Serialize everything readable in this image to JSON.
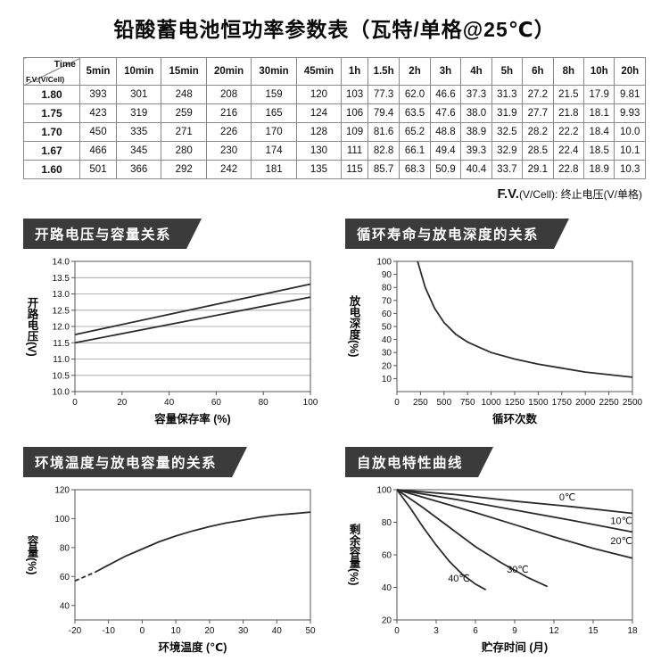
{
  "page_title": "铅酸蓄电池恒功率参数表（瓦特/单格@25℃）",
  "table": {
    "corner_top": "Time",
    "corner_bottom": "F.V.(V/Cell)",
    "columns": [
      "5min",
      "10min",
      "15min",
      "20min",
      "30min",
      "45min",
      "1h",
      "1.5h",
      "2h",
      "3h",
      "4h",
      "5h",
      "6h",
      "8h",
      "10h",
      "20h"
    ],
    "rows": [
      {
        "fv": "1.80",
        "values": [
          "393",
          "301",
          "248",
          "208",
          "159",
          "120",
          "103",
          "77.3",
          "62.0",
          "46.6",
          "37.3",
          "31.3",
          "27.2",
          "21.5",
          "17.9",
          "9.81"
        ]
      },
      {
        "fv": "1.75",
        "values": [
          "423",
          "319",
          "259",
          "216",
          "165",
          "124",
          "106",
          "79.4",
          "63.5",
          "47.6",
          "38.0",
          "31.9",
          "27.7",
          "21.8",
          "18.1",
          "9.93"
        ]
      },
      {
        "fv": "1.70",
        "values": [
          "450",
          "335",
          "271",
          "226",
          "170",
          "128",
          "109",
          "81.6",
          "65.2",
          "48.8",
          "38.9",
          "32.5",
          "28.2",
          "22.2",
          "18.4",
          "10.0"
        ]
      },
      {
        "fv": "1.67",
        "values": [
          "466",
          "345",
          "280",
          "230",
          "174",
          "130",
          "111",
          "82.8",
          "66.1",
          "49.4",
          "39.3",
          "32.9",
          "28.5",
          "22.4",
          "18.5",
          "10.1"
        ]
      },
      {
        "fv": "1.60",
        "values": [
          "501",
          "366",
          "292",
          "242",
          "181",
          "135",
          "115",
          "85.7",
          "68.3",
          "50.9",
          "40.4",
          "33.7",
          "29.1",
          "22.8",
          "18.9",
          "10.3"
        ]
      }
    ]
  },
  "footnote": {
    "lead": "F.V.",
    "rest": "(V/Cell): 终止电压(V/单格)"
  },
  "colors": {
    "banner": "#3b3b3b",
    "curve": "#2b2b2b"
  },
  "chart_data": [
    {
      "type": "line",
      "title": "开路电压与容量关系",
      "ylabel": "开路电压(V)",
      "xlabel": "容量保存率 (%)",
      "xlim": [
        0,
        100
      ],
      "ylim": [
        10,
        14
      ],
      "xtick_vals": [
        0,
        20,
        40,
        60,
        80,
        100
      ],
      "xtick_labels": [
        "0",
        "20",
        "40",
        "60",
        "80",
        "100"
      ],
      "ytick_vals": [
        10,
        10.5,
        11,
        11.5,
        12,
        12.5,
        13,
        13.5,
        14
      ],
      "ytick_labels": [
        "10.0",
        "10.5",
        "11.0",
        "11.5",
        "12.0",
        "12.5",
        "13.0",
        "13.5",
        "14.0"
      ],
      "grid": "h",
      "series": [
        {
          "name": "upper-line",
          "points": [
            [
              0,
              11.75
            ],
            [
              100,
              13.3
            ]
          ]
        },
        {
          "name": "lower-line",
          "points": [
            [
              0,
              11.5
            ],
            [
              100,
              12.9
            ]
          ]
        }
      ]
    },
    {
      "type": "line",
      "title": "循环寿命与放电深度的关系",
      "ylabel": "放电深度(%)",
      "xlabel": "循环次数",
      "xlim": [
        0,
        2500
      ],
      "ylim": [
        0,
        100
      ],
      "xtick_vals": [
        0,
        250,
        500,
        750,
        1000,
        1250,
        1500,
        1750,
        2000,
        2250,
        2500
      ],
      "xtick_labels": [
        "0",
        "250",
        "500",
        "750",
        "1000",
        "1250",
        "1500",
        "1750",
        "2000",
        "2250",
        "2500"
      ],
      "xtick_fs": 8.5,
      "ytick_vals": [
        10,
        20,
        30,
        40,
        50,
        60,
        70,
        80,
        90,
        100
      ],
      "ytick_labels": [
        "10",
        "20",
        "30",
        "40",
        "50",
        "60",
        "70",
        "80",
        "90",
        "100"
      ],
      "series": [
        {
          "name": "cycle-life",
          "points": [
            [
              220,
              100
            ],
            [
              300,
              80
            ],
            [
              400,
              64
            ],
            [
              500,
              53
            ],
            [
              625,
              44
            ],
            [
              750,
              38
            ],
            [
              875,
              34
            ],
            [
              1000,
              30
            ],
            [
              1250,
              25
            ],
            [
              1500,
              21
            ],
            [
              1750,
              18
            ],
            [
              2000,
              15
            ],
            [
              2250,
              13
            ],
            [
              2500,
              11
            ]
          ]
        }
      ]
    },
    {
      "type": "line",
      "title": "环境温度与放电容量的关系",
      "ylabel": "容量(%)",
      "xlabel": "环境温度 (℃)",
      "xlim": [
        -20,
        50
      ],
      "ylim": [
        30,
        120
      ],
      "xtick_vals": [
        -20,
        -10,
        0,
        10,
        20,
        30,
        40,
        50
      ],
      "xtick_labels": [
        "-20",
        "-10",
        "0",
        "10",
        "20",
        "30",
        "40",
        "50"
      ],
      "ytick_vals": [
        40,
        60,
        80,
        100,
        120
      ],
      "ytick_labels": [
        "40",
        "60",
        "80",
        "100",
        "120"
      ],
      "series": [
        {
          "name": "low-temp-dashed",
          "dashed": true,
          "points": [
            [
              -20,
              57
            ],
            [
              -14,
              63
            ]
          ]
        },
        {
          "name": "capacity-curve",
          "points": [
            [
              -14,
              63
            ],
            [
              -10,
              68
            ],
            [
              -5,
              74
            ],
            [
              0,
              79
            ],
            [
              5,
              84
            ],
            [
              10,
              88
            ],
            [
              15,
              91.5
            ],
            [
              20,
              94.5
            ],
            [
              25,
              97
            ],
            [
              30,
              99
            ],
            [
              35,
              101
            ],
            [
              40,
              102.5
            ],
            [
              45,
              103.5
            ],
            [
              50,
              104.5
            ]
          ]
        }
      ]
    },
    {
      "type": "line",
      "title": "自放电特性曲线",
      "ylabel": "剩余容量(%)",
      "xlabel": "贮存时间 (月)",
      "xlim": [
        0,
        18
      ],
      "ylim": [
        20,
        100
      ],
      "xtick_vals": [
        0,
        3,
        6,
        9,
        12,
        15,
        18
      ],
      "xtick_labels": [
        "0",
        "3",
        "6",
        "9",
        "12",
        "15",
        "18"
      ],
      "ytick_vals": [
        20,
        40,
        60,
        80,
        100
      ],
      "ytick_labels": [
        "20",
        "40",
        "60",
        "80",
        "100"
      ],
      "series": [
        {
          "name": "0C",
          "points": [
            [
              0,
              100
            ],
            [
              4.5,
              97
            ],
            [
              9,
              93
            ],
            [
              13.5,
              89.5
            ],
            [
              18,
              85.5
            ]
          ]
        },
        {
          "name": "10C",
          "points": [
            [
              0,
              100
            ],
            [
              4.5,
              94
            ],
            [
              9,
              87.5
            ],
            [
              13.5,
              81
            ],
            [
              18,
              74
            ]
          ]
        },
        {
          "name": "20C",
          "points": [
            [
              0,
              100
            ],
            [
              3,
              93
            ],
            [
              6,
              86
            ],
            [
              9,
              78.5
            ],
            [
              12,
              71
            ],
            [
              15,
              64
            ],
            [
              18,
              58
            ]
          ]
        },
        {
          "name": "30C",
          "points": [
            [
              0,
              100
            ],
            [
              2,
              89
            ],
            [
              4,
              77
            ],
            [
              6,
              65
            ],
            [
              8,
              55
            ],
            [
              10,
              46
            ],
            [
              11.5,
              40.5
            ]
          ]
        },
        {
          "name": "40C",
          "points": [
            [
              0,
              100
            ],
            [
              1,
              89
            ],
            [
              2,
              77
            ],
            [
              3,
              66
            ],
            [
              4,
              56
            ],
            [
              5,
              48
            ],
            [
              6,
              42
            ],
            [
              6.8,
              38.5
            ]
          ]
        }
      ],
      "labels": [
        {
          "text": "0℃",
          "x": 12.4,
          "y": 93.5,
          "anchor": "start"
        },
        {
          "text": "10℃",
          "x": 18,
          "y": 79,
          "anchor": "end"
        },
        {
          "text": "20℃",
          "x": 18,
          "y": 66.5,
          "anchor": "end"
        },
        {
          "text": "30℃",
          "x": 8.4,
          "y": 49,
          "anchor": "start"
        },
        {
          "text": "40℃",
          "x": 3.9,
          "y": 43.5,
          "anchor": "start"
        }
      ]
    }
  ]
}
